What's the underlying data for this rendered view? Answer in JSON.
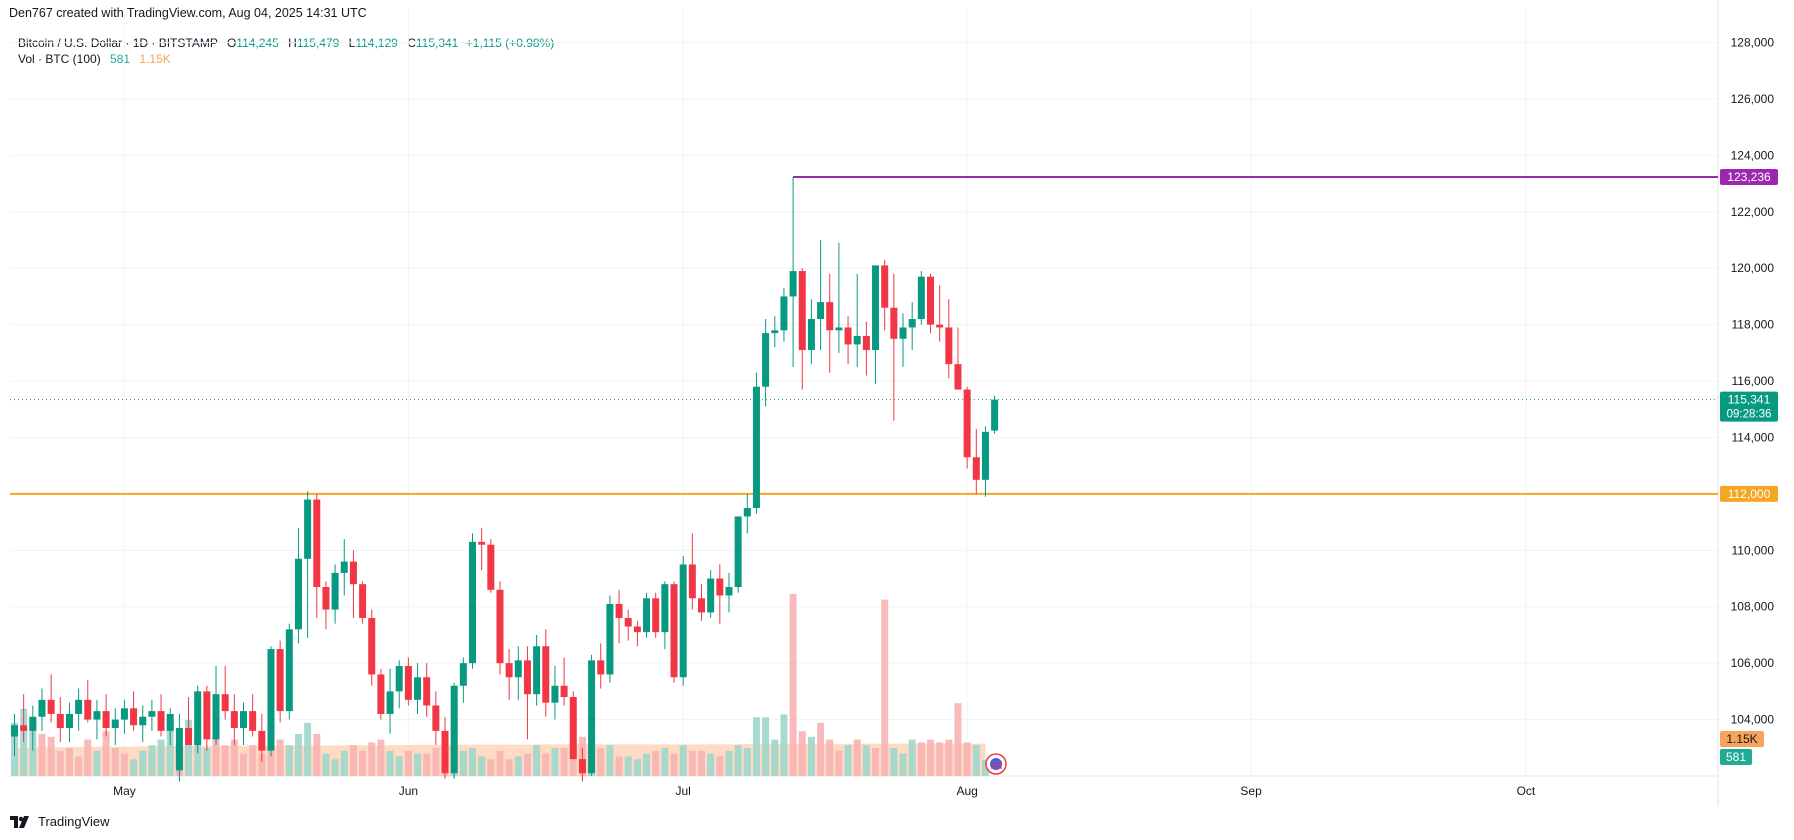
{
  "header": {
    "attribution": "Den767 created with TradingView.com, Aug 04, 2025 14:31 UTC"
  },
  "legend": {
    "symbol": "Bitcoin / U.S. Dollar · 1D · BITSTAMP",
    "open_label": "O",
    "open": "114,245",
    "high_label": "H",
    "high": "115,479",
    "low_label": "L",
    "low": "114,129",
    "close_label": "C",
    "close": "115,341",
    "change": "+1,115 (+0.98%)",
    "volume_label": "Vol · BTC (100)",
    "volume_value": "581",
    "volume_ma": "1.15K"
  },
  "footer": {
    "brand": "TradingView"
  },
  "colors": {
    "up": "#089981",
    "down": "#f23645",
    "level_purple": "#9c27b0",
    "level_orange": "#f5a623",
    "price_tag": "#089981",
    "grid": "#f0f3fa",
    "vol_up": "#9ed6cc",
    "vol_down": "#f7b3b3",
    "vol_ma_fill": "#ffd2b5"
  },
  "chart_data": {
    "type": "candlestick",
    "title": "Bitcoin / U.S. Dollar · 1D · BITSTAMP",
    "y_range": [
      102000,
      128800
    ],
    "y_ticks": [
      104000,
      106000,
      108000,
      110000,
      112000,
      114000,
      116000,
      118000,
      120000,
      122000,
      124000,
      126000,
      128000
    ],
    "y_tick_labels": [
      "104,000",
      "106,000",
      "108,000",
      "110,000",
      "112,000",
      "114,000",
      "116,000",
      "118,000",
      "120,000",
      "122,000",
      "124,000",
      "126,000",
      "128,000"
    ],
    "x_labels": [
      {
        "label": "May",
        "day_index": 12
      },
      {
        "label": "Jun",
        "day_index": 43
      },
      {
        "label": "Jul",
        "day_index": 73
      },
      {
        "label": "Aug",
        "day_index": 104
      },
      {
        "label": "Sep",
        "day_index": 135
      },
      {
        "label": "Oct",
        "day_index": 165
      }
    ],
    "levels": [
      {
        "name": "resistance",
        "price": 123236,
        "label": "123,236",
        "color": "#9c27b0",
        "start_day": 85
      },
      {
        "name": "support",
        "price": 112000,
        "label": "112,000",
        "color": "#f5a623",
        "start_day": 0
      }
    ],
    "last_price": {
      "price": 115341,
      "label": "115,341",
      "countdown": "09:28:36"
    },
    "volume_tags": {
      "ma_label": "1.15K",
      "last_label": "581"
    },
    "candles": [
      [
        103400,
        104200,
        102700,
        103800
      ],
      [
        103800,
        104900,
        103200,
        103600
      ],
      [
        103600,
        104500,
        102900,
        104100
      ],
      [
        104100,
        105100,
        103600,
        104700
      ],
      [
        104700,
        105600,
        103900,
        104200
      ],
      [
        104200,
        104800,
        103200,
        103700
      ],
      [
        103700,
        104600,
        103200,
        104200
      ],
      [
        104200,
        105100,
        103600,
        104700
      ],
      [
        104700,
        105400,
        103900,
        104000
      ],
      [
        104000,
        104700,
        103300,
        104300
      ],
      [
        104300,
        104900,
        103400,
        103700
      ],
      [
        103700,
        104400,
        103100,
        104000
      ],
      [
        104000,
        104700,
        103500,
        104400
      ],
      [
        104400,
        105000,
        103600,
        103800
      ],
      [
        103800,
        104500,
        103200,
        104100
      ],
      [
        104100,
        104700,
        103600,
        104300
      ],
      [
        104300,
        104900,
        103400,
        103600
      ],
      [
        103600,
        104400,
        103100,
        104200
      ],
      [
        102200,
        104200,
        101800,
        103700
      ],
      [
        103700,
        104800,
        103200,
        103100
      ],
      [
        103100,
        105200,
        102800,
        105000
      ],
      [
        105000,
        105200,
        102900,
        103300
      ],
      [
        103300,
        105900,
        103100,
        104900
      ],
      [
        104900,
        105900,
        104000,
        104300
      ],
      [
        104300,
        104900,
        103100,
        103700
      ],
      [
        103700,
        104600,
        103100,
        104300
      ],
      [
        104300,
        104900,
        103400,
        103600
      ],
      [
        103600,
        104200,
        102500,
        102900
      ],
      [
        102900,
        106600,
        102700,
        106500
      ],
      [
        106500,
        106800,
        103900,
        104300
      ],
      [
        104300,
        107400,
        104000,
        107200
      ],
      [
        107200,
        110800,
        106700,
        109700
      ],
      [
        109700,
        112100,
        106900,
        111800
      ],
      [
        111800,
        112000,
        107600,
        108700
      ],
      [
        108700,
        108900,
        107200,
        107900
      ],
      [
        107900,
        109500,
        107400,
        109200
      ],
      [
        109200,
        110400,
        108400,
        109600
      ],
      [
        109600,
        110000,
        107600,
        108800
      ],
      [
        108800,
        108900,
        107400,
        107600
      ],
      [
        107600,
        107900,
        105200,
        105600
      ],
      [
        105600,
        105800,
        104000,
        104200
      ],
      [
        104200,
        105800,
        103500,
        105000
      ],
      [
        105000,
        106100,
        104400,
        105900
      ],
      [
        105900,
        106200,
        104500,
        104700
      ],
      [
        104700,
        106000,
        104200,
        105500
      ],
      [
        105500,
        106000,
        104100,
        104500
      ],
      [
        104500,
        105000,
        103100,
        103600
      ],
      [
        103600,
        104100,
        101900,
        102100
      ],
      [
        102100,
        105300,
        101900,
        105200
      ],
      [
        105200,
        106200,
        104600,
        106000
      ],
      [
        106000,
        110600,
        105800,
        110300
      ],
      [
        110300,
        110800,
        109300,
        110200
      ],
      [
        110200,
        110400,
        108500,
        108600
      ],
      [
        108600,
        108900,
        105600,
        106000
      ],
      [
        106000,
        106500,
        104700,
        105500
      ],
      [
        105500,
        106600,
        104700,
        106100
      ],
      [
        106100,
        106600,
        103300,
        104900
      ],
      [
        104900,
        107000,
        104500,
        106600
      ],
      [
        106600,
        107200,
        104100,
        104600
      ],
      [
        104600,
        105900,
        104000,
        105200
      ],
      [
        105200,
        106200,
        104500,
        104800
      ],
      [
        104800,
        105000,
        102600,
        102600
      ],
      [
        102600,
        103000,
        101800,
        102100
      ],
      [
        102100,
        106300,
        102000,
        106100
      ],
      [
        106100,
        106700,
        105100,
        105600
      ],
      [
        105600,
        108400,
        105300,
        108100
      ],
      [
        108100,
        108600,
        106700,
        107600
      ],
      [
        107600,
        107900,
        106800,
        107300
      ],
      [
        107300,
        107500,
        106600,
        107100
      ],
      [
        107100,
        108500,
        106900,
        108300
      ],
      [
        108300,
        108500,
        106900,
        107100
      ],
      [
        107100,
        108900,
        106500,
        108800
      ],
      [
        108800,
        108900,
        105300,
        105500
      ],
      [
        105500,
        109800,
        105200,
        109500
      ],
      [
        109500,
        110600,
        107900,
        108300
      ],
      [
        108300,
        108800,
        107500,
        107800
      ],
      [
        107800,
        109300,
        107600,
        109000
      ],
      [
        109000,
        109500,
        107400,
        108400
      ],
      [
        108400,
        109200,
        107800,
        108700
      ],
      [
        108700,
        111200,
        108500,
        111200
      ],
      [
        111200,
        112000,
        110600,
        111500
      ],
      [
        111500,
        116300,
        111300,
        115800
      ],
      [
        115800,
        118200,
        115100,
        117700
      ],
      [
        117700,
        118300,
        117200,
        117800
      ],
      [
        117800,
        119300,
        117400,
        119000
      ],
      [
        119000,
        123236,
        116500,
        119900
      ],
      [
        119900,
        120000,
        115700,
        117100
      ],
      [
        117100,
        118900,
        116600,
        118200
      ],
      [
        118200,
        121000,
        117100,
        118800
      ],
      [
        118800,
        119800,
        116300,
        117800
      ],
      [
        117800,
        120900,
        117000,
        117900
      ],
      [
        117900,
        118300,
        116600,
        117300
      ],
      [
        117300,
        119800,
        116500,
        117600
      ],
      [
        117600,
        118100,
        116200,
        117100
      ],
      [
        117100,
        120100,
        115900,
        120100
      ],
      [
        120100,
        120300,
        117800,
        118600
      ],
      [
        118600,
        119800,
        114600,
        117500
      ],
      [
        117500,
        118400,
        116500,
        117900
      ],
      [
        117900,
        118800,
        117100,
        118200
      ],
      [
        118200,
        119900,
        118000,
        119700
      ],
      [
        119700,
        119800,
        117700,
        118000
      ],
      [
        118000,
        119400,
        117400,
        117900
      ],
      [
        117900,
        118900,
        116100,
        116600
      ],
      [
        116600,
        117900,
        115700,
        115700
      ],
      [
        115700,
        115800,
        112900,
        113300
      ],
      [
        113300,
        114300,
        112000,
        112500
      ],
      [
        112500,
        114400,
        111900,
        114200
      ],
      [
        114245,
        115479,
        114129,
        115341
      ]
    ],
    "volumes": [
      [
        1.9,
        "up"
      ],
      [
        2.4,
        "up"
      ],
      [
        2.1,
        "up"
      ],
      [
        1.5,
        "down"
      ],
      [
        1.4,
        "down"
      ],
      [
        0.9,
        "down"
      ],
      [
        1.0,
        "down"
      ],
      [
        0.7,
        "down"
      ],
      [
        1.3,
        "down"
      ],
      [
        0.9,
        "up"
      ],
      [
        1.6,
        "down"
      ],
      [
        1.0,
        "down"
      ],
      [
        0.8,
        "down"
      ],
      [
        0.6,
        "up"
      ],
      [
        0.9,
        "up"
      ],
      [
        1.1,
        "up"
      ],
      [
        1.3,
        "up"
      ],
      [
        2.0,
        "up"
      ],
      [
        1.2,
        "down"
      ],
      [
        2.0,
        "up"
      ],
      [
        1.4,
        "up"
      ],
      [
        1.0,
        "up"
      ],
      [
        1.5,
        "down"
      ],
      [
        1.1,
        "down"
      ],
      [
        1.3,
        "down"
      ],
      [
        0.8,
        "down"
      ],
      [
        1.1,
        "down"
      ],
      [
        0.8,
        "down"
      ],
      [
        1.2,
        "down"
      ],
      [
        1.3,
        "down"
      ],
      [
        1.1,
        "up"
      ],
      [
        1.5,
        "up"
      ],
      [
        1.9,
        "up"
      ],
      [
        1.5,
        "down"
      ],
      [
        0.8,
        "up"
      ],
      [
        0.6,
        "up"
      ],
      [
        0.9,
        "up"
      ],
      [
        1.1,
        "down"
      ],
      [
        0.9,
        "down"
      ],
      [
        1.2,
        "down"
      ],
      [
        1.3,
        "down"
      ],
      [
        0.9,
        "up"
      ],
      [
        0.7,
        "up"
      ],
      [
        0.9,
        "down"
      ],
      [
        0.8,
        "up"
      ],
      [
        0.8,
        "down"
      ],
      [
        1.0,
        "down"
      ],
      [
        1.3,
        "down"
      ],
      [
        1.3,
        "up"
      ],
      [
        0.9,
        "up"
      ],
      [
        1.0,
        "up"
      ],
      [
        0.7,
        "up"
      ],
      [
        0.6,
        "down"
      ],
      [
        0.9,
        "down"
      ],
      [
        0.6,
        "down"
      ],
      [
        0.7,
        "up"
      ],
      [
        0.8,
        "down"
      ],
      [
        1.1,
        "up"
      ],
      [
        0.8,
        "down"
      ],
      [
        1.0,
        "up"
      ],
      [
        1.0,
        "down"
      ],
      [
        1.3,
        "down"
      ],
      [
        1.4,
        "down"
      ],
      [
        1.3,
        "up"
      ],
      [
        1.0,
        "down"
      ],
      [
        1.1,
        "up"
      ],
      [
        0.7,
        "down"
      ],
      [
        0.7,
        "up"
      ],
      [
        0.6,
        "up"
      ],
      [
        0.8,
        "up"
      ],
      [
        0.9,
        "down"
      ],
      [
        1.0,
        "up"
      ],
      [
        0.8,
        "down"
      ],
      [
        1.1,
        "up"
      ],
      [
        0.9,
        "down"
      ],
      [
        0.9,
        "down"
      ],
      [
        0.8,
        "up"
      ],
      [
        0.7,
        "down"
      ],
      [
        0.9,
        "up"
      ],
      [
        1.1,
        "up"
      ],
      [
        1.0,
        "up"
      ],
      [
        2.1,
        "up"
      ],
      [
        2.1,
        "up"
      ],
      [
        1.3,
        "up"
      ],
      [
        2.2,
        "up"
      ],
      [
        6.5,
        "down"
      ],
      [
        1.6,
        "down"
      ],
      [
        1.4,
        "up"
      ],
      [
        1.9,
        "down"
      ],
      [
        1.3,
        "down"
      ],
      [
        0.9,
        "down"
      ],
      [
        1.1,
        "up"
      ],
      [
        1.3,
        "down"
      ],
      [
        1.1,
        "up"
      ],
      [
        1.0,
        "down"
      ],
      [
        6.3,
        "down"
      ],
      [
        1.0,
        "up"
      ],
      [
        0.8,
        "up"
      ],
      [
        1.3,
        "up"
      ],
      [
        1.2,
        "down"
      ],
      [
        1.3,
        "down"
      ],
      [
        1.2,
        "down"
      ],
      [
        1.3,
        "down"
      ],
      [
        2.6,
        "down"
      ],
      [
        1.2,
        "down"
      ],
      [
        1.1,
        "up"
      ],
      [
        0.58,
        "up"
      ]
    ],
    "volume_ma": [
      1.0,
      1.01,
      1.02,
      1.02,
      1.03,
      1.03,
      1.03,
      1.04,
      1.04,
      1.04,
      1.05,
      1.05,
      1.05,
      1.05,
      1.06,
      1.06,
      1.06,
      1.07,
      1.07,
      1.07,
      1.08,
      1.08,
      1.08,
      1.08,
      1.08,
      1.08,
      1.08,
      1.08,
      1.08,
      1.08,
      1.08,
      1.09,
      1.09,
      1.09,
      1.09,
      1.09,
      1.1,
      1.1,
      1.1,
      1.1,
      1.1,
      1.1,
      1.1,
      1.11,
      1.11,
      1.11,
      1.11,
      1.11,
      1.11,
      1.12,
      1.12,
      1.12,
      1.12,
      1.12,
      1.12,
      1.12,
      1.12,
      1.13,
      1.13,
      1.13,
      1.13,
      1.13,
      1.13,
      1.13,
      1.13,
      1.13,
      1.13,
      1.13,
      1.13,
      1.13,
      1.13,
      1.13,
      1.13,
      1.13,
      1.13,
      1.13,
      1.13,
      1.13,
      1.13,
      1.14,
      1.14,
      1.14,
      1.14,
      1.14,
      1.14,
      1.14,
      1.14,
      1.14,
      1.14,
      1.14,
      1.14,
      1.14,
      1.15,
      1.15,
      1.15,
      1.15,
      1.15,
      1.15,
      1.15,
      1.15,
      1.15,
      1.15,
      1.15,
      1.15,
      1.15,
      1.15,
      1.15
    ]
  }
}
